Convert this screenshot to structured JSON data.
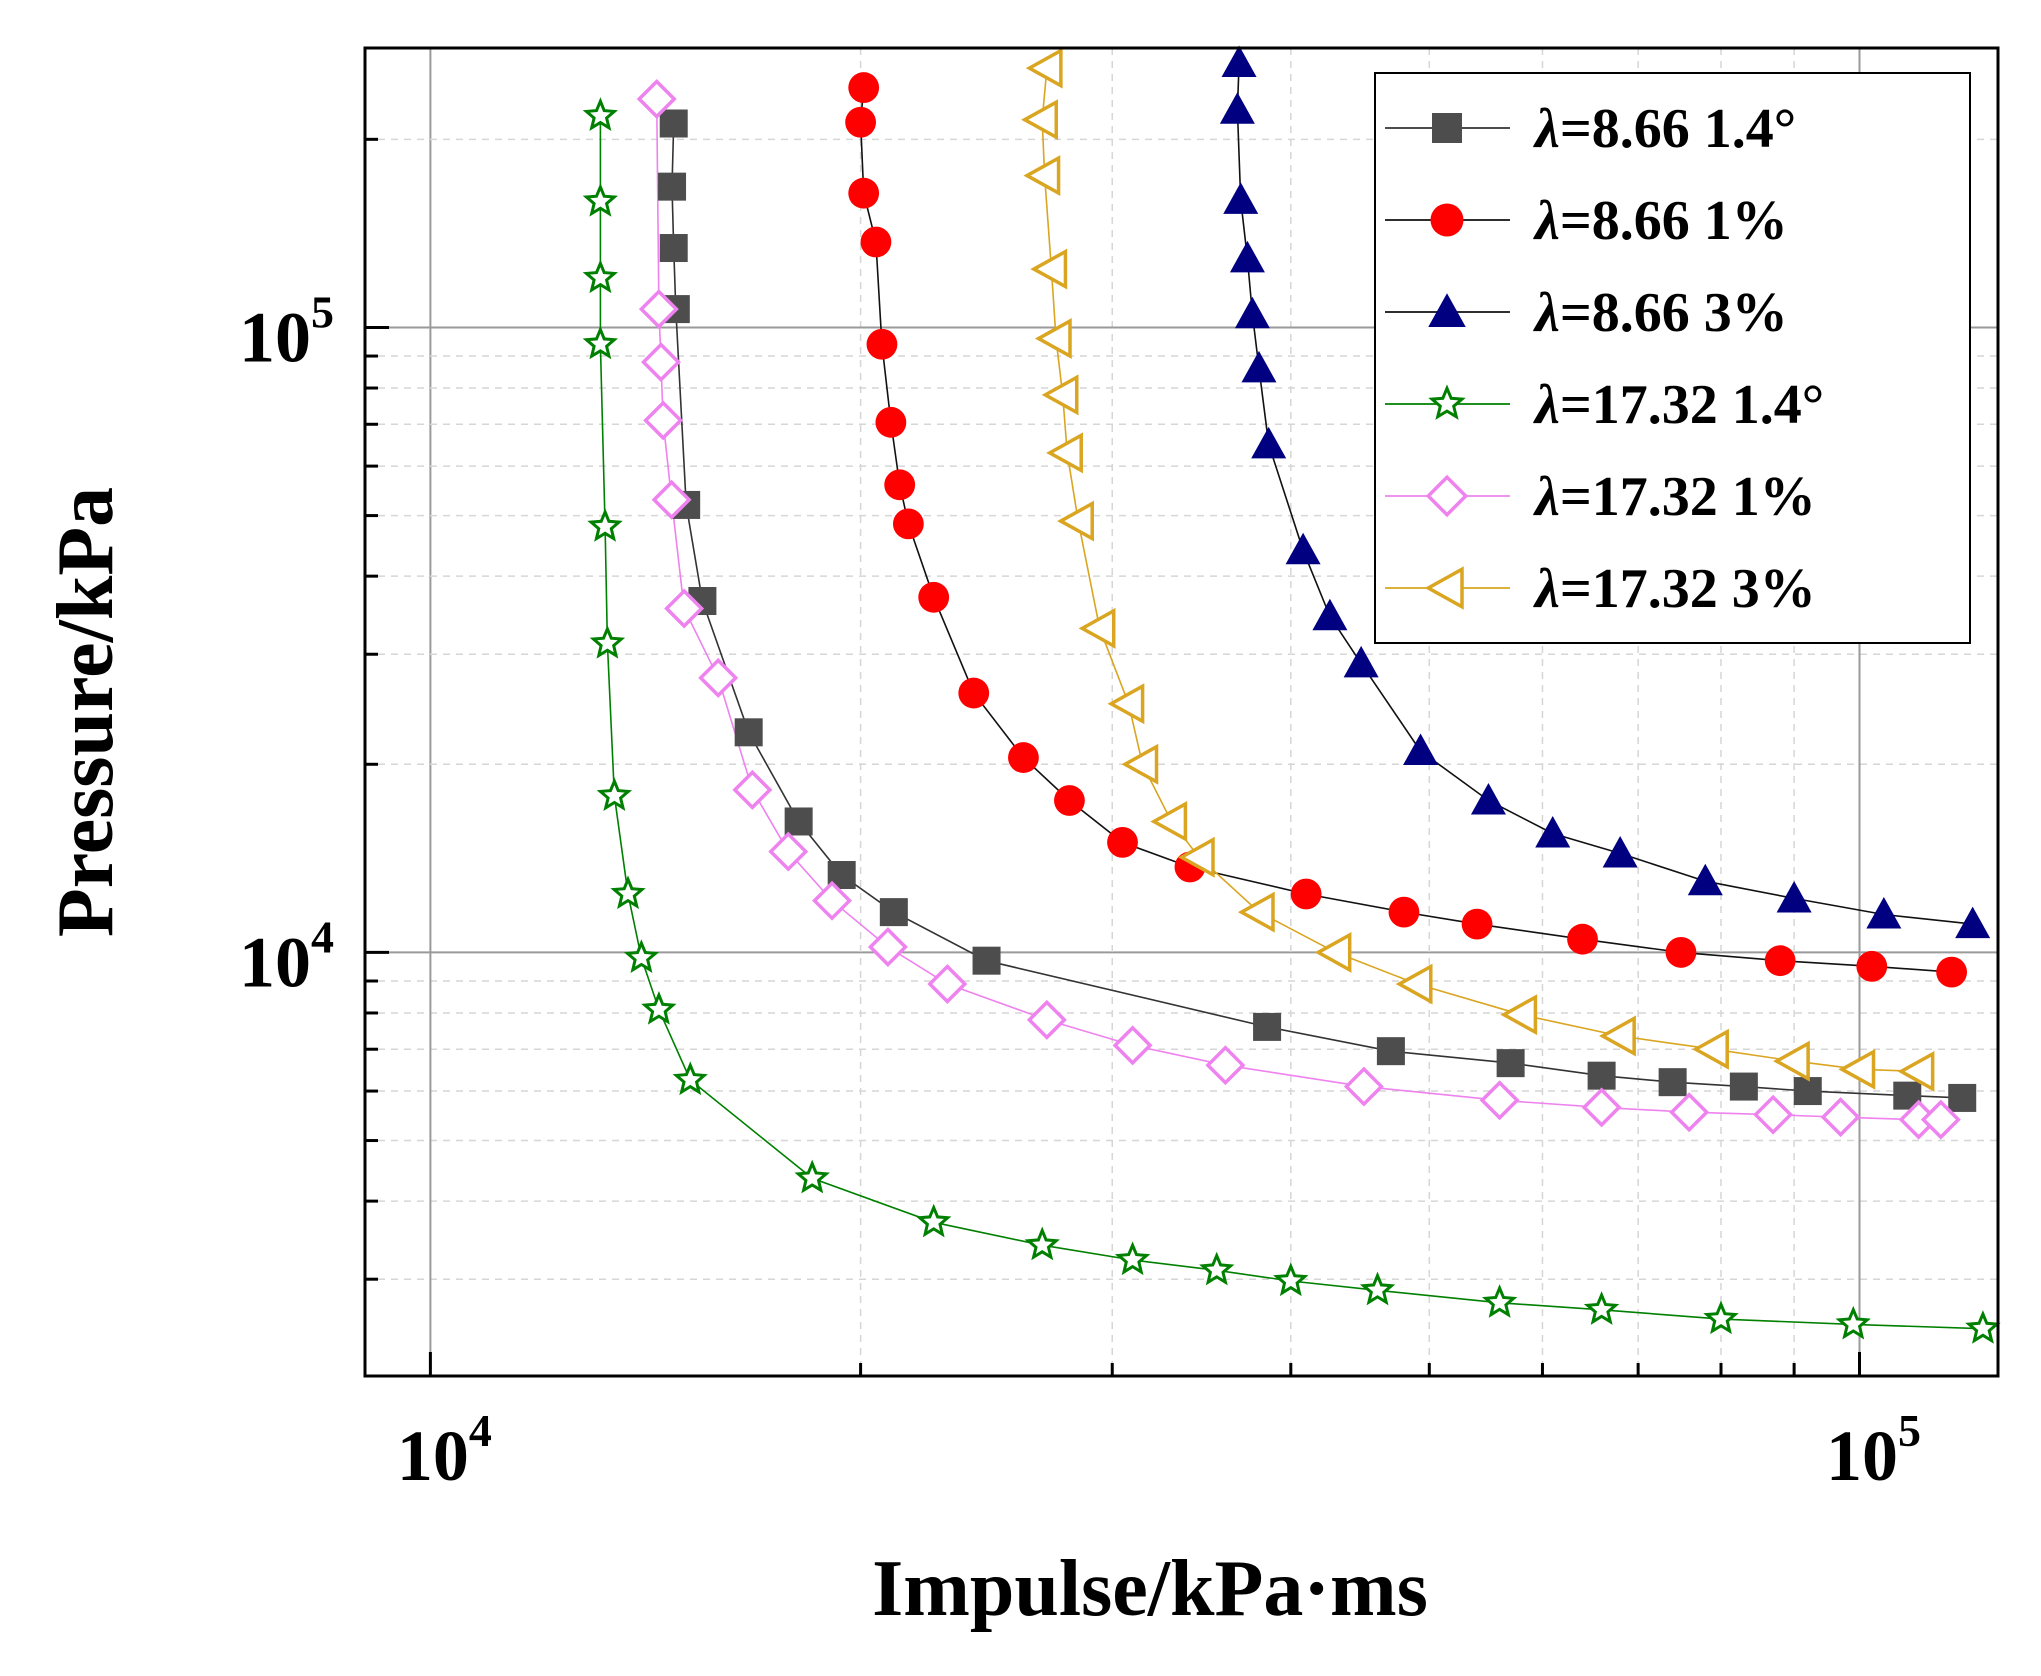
{
  "chart_data": {
    "type": "scatter",
    "xlabel": "Impulse/kPa·ms",
    "ylabel": "Pressure/kPa",
    "xscale": "log",
    "yscale": "log",
    "xlim": [
      9000,
      125000
    ],
    "ylim": [
      2100,
      280000
    ],
    "xticks": [
      {
        "value": 10000,
        "base": "10",
        "exp": "4"
      },
      {
        "value": 100000,
        "base": "10",
        "exp": "5"
      }
    ],
    "yticks": [
      {
        "value": 10000,
        "base": "10",
        "exp": "4"
      },
      {
        "value": 100000,
        "base": "10",
        "exp": "5"
      }
    ],
    "grid": true,
    "legend_position": "top-right",
    "series": [
      {
        "name": "λ=8.66 1.4°",
        "lambda_symbol": "λ",
        "label_rest": "=8.66 1.4°",
        "marker": "square",
        "color": "#4d4d4d",
        "line_color": "#333333",
        "points": [
          [
            14800,
            212000
          ],
          [
            14760,
            168000
          ],
          [
            14800,
            134000
          ],
          [
            14850,
            107000
          ],
          [
            15100,
            52000
          ],
          [
            15500,
            36500
          ],
          [
            16700,
            22500
          ],
          [
            18100,
            16200
          ],
          [
            19400,
            13300
          ],
          [
            21100,
            11600
          ],
          [
            24500,
            9700
          ],
          [
            38500,
            7600
          ],
          [
            47000,
            6950
          ],
          [
            57000,
            6650
          ],
          [
            66000,
            6350
          ],
          [
            74000,
            6200
          ],
          [
            83000,
            6100
          ],
          [
            92000,
            6000
          ],
          [
            108000,
            5900
          ],
          [
            118000,
            5850
          ]
        ]
      },
      {
        "name": "λ=8.66 1%",
        "lambda_symbol": "λ",
        "label_rest": "=8.66 1%",
        "marker": "circle",
        "color": "#ff0000",
        "line_color": "#111111",
        "points": [
          [
            20100,
            242000
          ],
          [
            20000,
            213000
          ],
          [
            20100,
            164000
          ],
          [
            20500,
            137000
          ],
          [
            20700,
            94000
          ],
          [
            21000,
            70500
          ],
          [
            21300,
            56000
          ],
          [
            21600,
            48500
          ],
          [
            22500,
            37000
          ],
          [
            24000,
            26000
          ],
          [
            26000,
            20500
          ],
          [
            28000,
            17500
          ],
          [
            30500,
            15000
          ],
          [
            34000,
            13700
          ],
          [
            41000,
            12400
          ],
          [
            48000,
            11600
          ],
          [
            54000,
            11100
          ],
          [
            64000,
            10500
          ],
          [
            75000,
            10000
          ],
          [
            88000,
            9700
          ],
          [
            102000,
            9500
          ],
          [
            116000,
            9300
          ]
        ]
      },
      {
        "name": "λ=8.66 3%",
        "lambda_symbol": "λ",
        "label_rest": "=8.66 3%",
        "marker": "triangle-up",
        "color": "#000080",
        "line_color": "#111111",
        "points": [
          [
            36800,
            265000
          ],
          [
            36700,
            223000
          ],
          [
            36900,
            160000
          ],
          [
            37300,
            129000
          ],
          [
            37600,
            105000
          ],
          [
            38000,
            86000
          ],
          [
            38600,
            65000
          ],
          [
            40800,
            44000
          ],
          [
            42600,
            34500
          ],
          [
            44800,
            29000
          ],
          [
            49300,
            21000
          ],
          [
            55000,
            17500
          ],
          [
            61000,
            15500
          ],
          [
            68000,
            14400
          ],
          [
            78000,
            13000
          ],
          [
            90000,
            12200
          ],
          [
            104000,
            11500
          ],
          [
            120000,
            11100
          ]
        ]
      },
      {
        "name": "λ=17.32 1.4°",
        "lambda_symbol": "λ",
        "label_rest": "=17.32 1.4°",
        "marker": "star",
        "color": "#008000",
        "line_color": "#008000",
        "points": [
          [
            13150,
            218000
          ],
          [
            13150,
            159000
          ],
          [
            13150,
            120000
          ],
          [
            13150,
            94000
          ],
          [
            13250,
            48000
          ],
          [
            13300,
            31200
          ],
          [
            13450,
            17800
          ],
          [
            13750,
            12400
          ],
          [
            14050,
            9800
          ],
          [
            14450,
            8100
          ],
          [
            15200,
            6250
          ],
          [
            18500,
            4350
          ],
          [
            22500,
            3700
          ],
          [
            26800,
            3400
          ],
          [
            31000,
            3220
          ],
          [
            35500,
            3100
          ],
          [
            40000,
            2980
          ],
          [
            46000,
            2880
          ],
          [
            56000,
            2750
          ],
          [
            66000,
            2680
          ],
          [
            80000,
            2590
          ],
          [
            99000,
            2540
          ],
          [
            122000,
            2500
          ]
        ]
      },
      {
        "name": "λ=17.32 1%",
        "lambda_symbol": "λ",
        "label_rest": "=17.32 1%",
        "marker": "diamond",
        "color": "#ee82ee",
        "line_color": "#ee82ee",
        "points": [
          [
            14400,
            232000
          ],
          [
            14450,
            107000
          ],
          [
            14500,
            88000
          ],
          [
            14550,
            71000
          ],
          [
            14750,
            53000
          ],
          [
            15050,
            35500
          ],
          [
            15900,
            27500
          ],
          [
            16800,
            18200
          ],
          [
            17800,
            14500
          ],
          [
            19100,
            12100
          ],
          [
            20900,
            10200
          ],
          [
            23000,
            8900
          ],
          [
            27000,
            7800
          ],
          [
            31000,
            7100
          ],
          [
            36000,
            6600
          ],
          [
            45000,
            6100
          ],
          [
            56000,
            5800
          ],
          [
            66000,
            5650
          ],
          [
            76000,
            5550
          ],
          [
            87000,
            5500
          ],
          [
            97000,
            5450
          ],
          [
            110000,
            5400
          ],
          [
            114000,
            5400
          ]
        ]
      },
      {
        "name": "λ=17.32 3%",
        "lambda_symbol": "λ",
        "label_rest": "=17.32 3%",
        "marker": "triangle-left",
        "color": "#daa520",
        "line_color": "#daa520",
        "points": [
          [
            27000,
            260000
          ],
          [
            26800,
            215000
          ],
          [
            26900,
            175000
          ],
          [
            27200,
            124000
          ],
          [
            27400,
            96000
          ],
          [
            27700,
            78000
          ],
          [
            27900,
            63000
          ],
          [
            28400,
            49000
          ],
          [
            29400,
            33000
          ],
          [
            30800,
            25000
          ],
          [
            31500,
            20000
          ],
          [
            33000,
            16200
          ],
          [
            34500,
            14200
          ],
          [
            38000,
            11600
          ],
          [
            43000,
            10000
          ],
          [
            49000,
            8900
          ],
          [
            58000,
            7950
          ],
          [
            68000,
            7350
          ],
          [
            79000,
            7000
          ],
          [
            90000,
            6700
          ],
          [
            100000,
            6500
          ],
          [
            110000,
            6450
          ]
        ]
      }
    ]
  }
}
